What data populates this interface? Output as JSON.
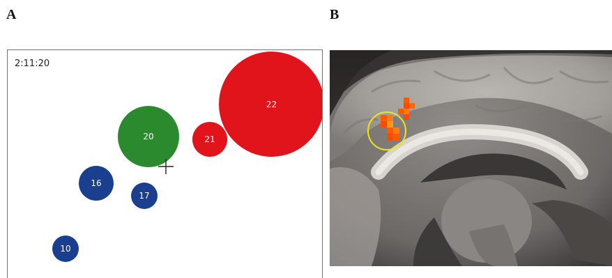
{
  "panels": {
    "a": {
      "label": "A"
    },
    "b": {
      "label": "B"
    }
  },
  "timer": "2:11:20",
  "bubbles": [
    {
      "id": "b22",
      "number": "22",
      "color": "red"
    },
    {
      "id": "b21",
      "number": "21",
      "color": "red"
    },
    {
      "id": "b20",
      "number": "20",
      "color": "green"
    },
    {
      "id": "b16",
      "number": "16",
      "color": "blue"
    },
    {
      "id": "b17",
      "number": "17",
      "color": "blue"
    },
    {
      "id": "b10",
      "number": "10",
      "color": "blue"
    }
  ],
  "colors": {
    "blue": "#1a3f8f",
    "green": "#2b8a2e",
    "red": "#e0141a",
    "roi_circle": "#f2e21c",
    "activation": "#ff5a00"
  },
  "icons": {
    "cursor": "crosshair-icon"
  }
}
